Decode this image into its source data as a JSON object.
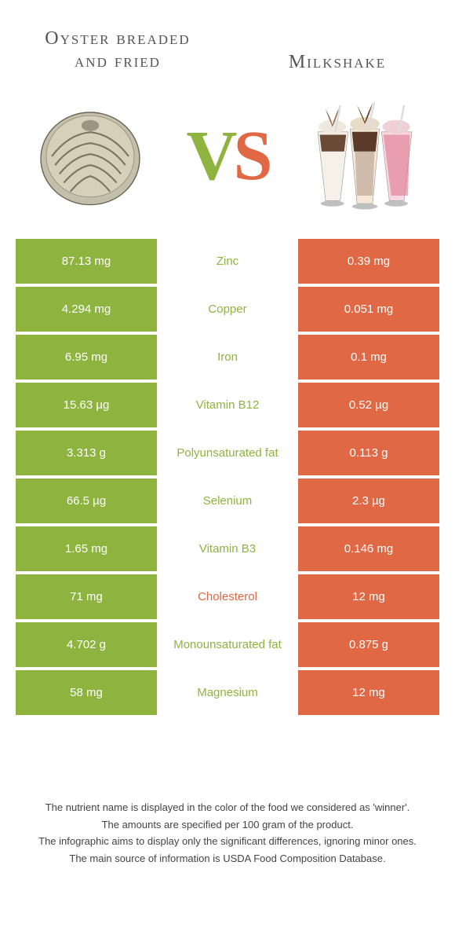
{
  "left_food": "Oyster breaded and fried",
  "right_food": "Milkshake",
  "vs_text_v": "V",
  "vs_text_s": "S",
  "colors": {
    "green": "#8fb33f",
    "orange": "#e06844",
    "white_text": "#ffffff"
  },
  "rows": [
    {
      "nutrient": "Zinc",
      "left": "87.13 mg",
      "right": "0.39 mg",
      "winner": "left"
    },
    {
      "nutrient": "Copper",
      "left": "4.294 mg",
      "right": "0.051 mg",
      "winner": "left"
    },
    {
      "nutrient": "Iron",
      "left": "6.95 mg",
      "right": "0.1 mg",
      "winner": "left"
    },
    {
      "nutrient": "Vitamin B12",
      "left": "15.63 µg",
      "right": "0.52 µg",
      "winner": "left"
    },
    {
      "nutrient": "Polyunsaturated fat",
      "left": "3.313 g",
      "right": "0.113 g",
      "winner": "left"
    },
    {
      "nutrient": "Selenium",
      "left": "66.5 µg",
      "right": "2.3 µg",
      "winner": "left"
    },
    {
      "nutrient": "Vitamin B3",
      "left": "1.65 mg",
      "right": "0.146 mg",
      "winner": "left"
    },
    {
      "nutrient": "Cholesterol",
      "left": "71 mg",
      "right": "12 mg",
      "winner": "right"
    },
    {
      "nutrient": "Monounsaturated fat",
      "left": "4.702 g",
      "right": "0.875 g",
      "winner": "left"
    },
    {
      "nutrient": "Magnesium",
      "left": "58 mg",
      "right": "12 mg",
      "winner": "left"
    }
  ],
  "footer": [
    "The nutrient name is displayed in the color of the food we considered as 'winner'.",
    "The amounts are specified per 100 gram of the product.",
    "The infographic aims to display only the significant differences, ignoring minor ones.",
    "The main source of information is USDA Food Composition Database."
  ]
}
